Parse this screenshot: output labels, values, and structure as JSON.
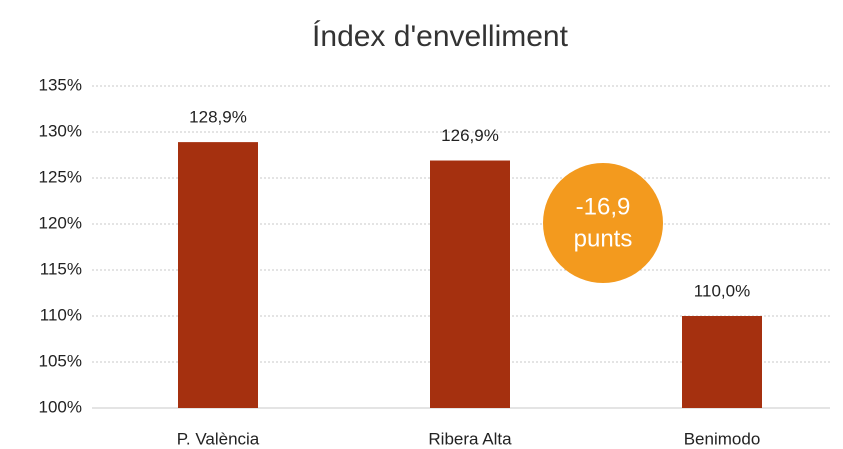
{
  "chart_data": {
    "type": "bar",
    "title": "Índex d'envelliment",
    "categories": [
      "P. València",
      "Ribera Alta",
      "Benimodo"
    ],
    "values": [
      128.9,
      126.9,
      110.0
    ],
    "value_labels": [
      "128,9%",
      "126,9%",
      "110,0%"
    ],
    "color": "#a5300f",
    "ylim": [
      100,
      135
    ],
    "yticks": [
      {
        "value": 100,
        "label": "100%"
      },
      {
        "value": 105,
        "label": "105%"
      },
      {
        "value": 110,
        "label": "110%"
      },
      {
        "value": 115,
        "label": "115%"
      },
      {
        "value": 120,
        "label": "120%"
      },
      {
        "value": 125,
        "label": "125%"
      },
      {
        "value": 130,
        "label": "130%"
      },
      {
        "value": 135,
        "label": "135%"
      }
    ],
    "grid": true,
    "annotation": {
      "text": [
        "-16,9",
        "punts"
      ],
      "color": "#f39a1e"
    }
  }
}
